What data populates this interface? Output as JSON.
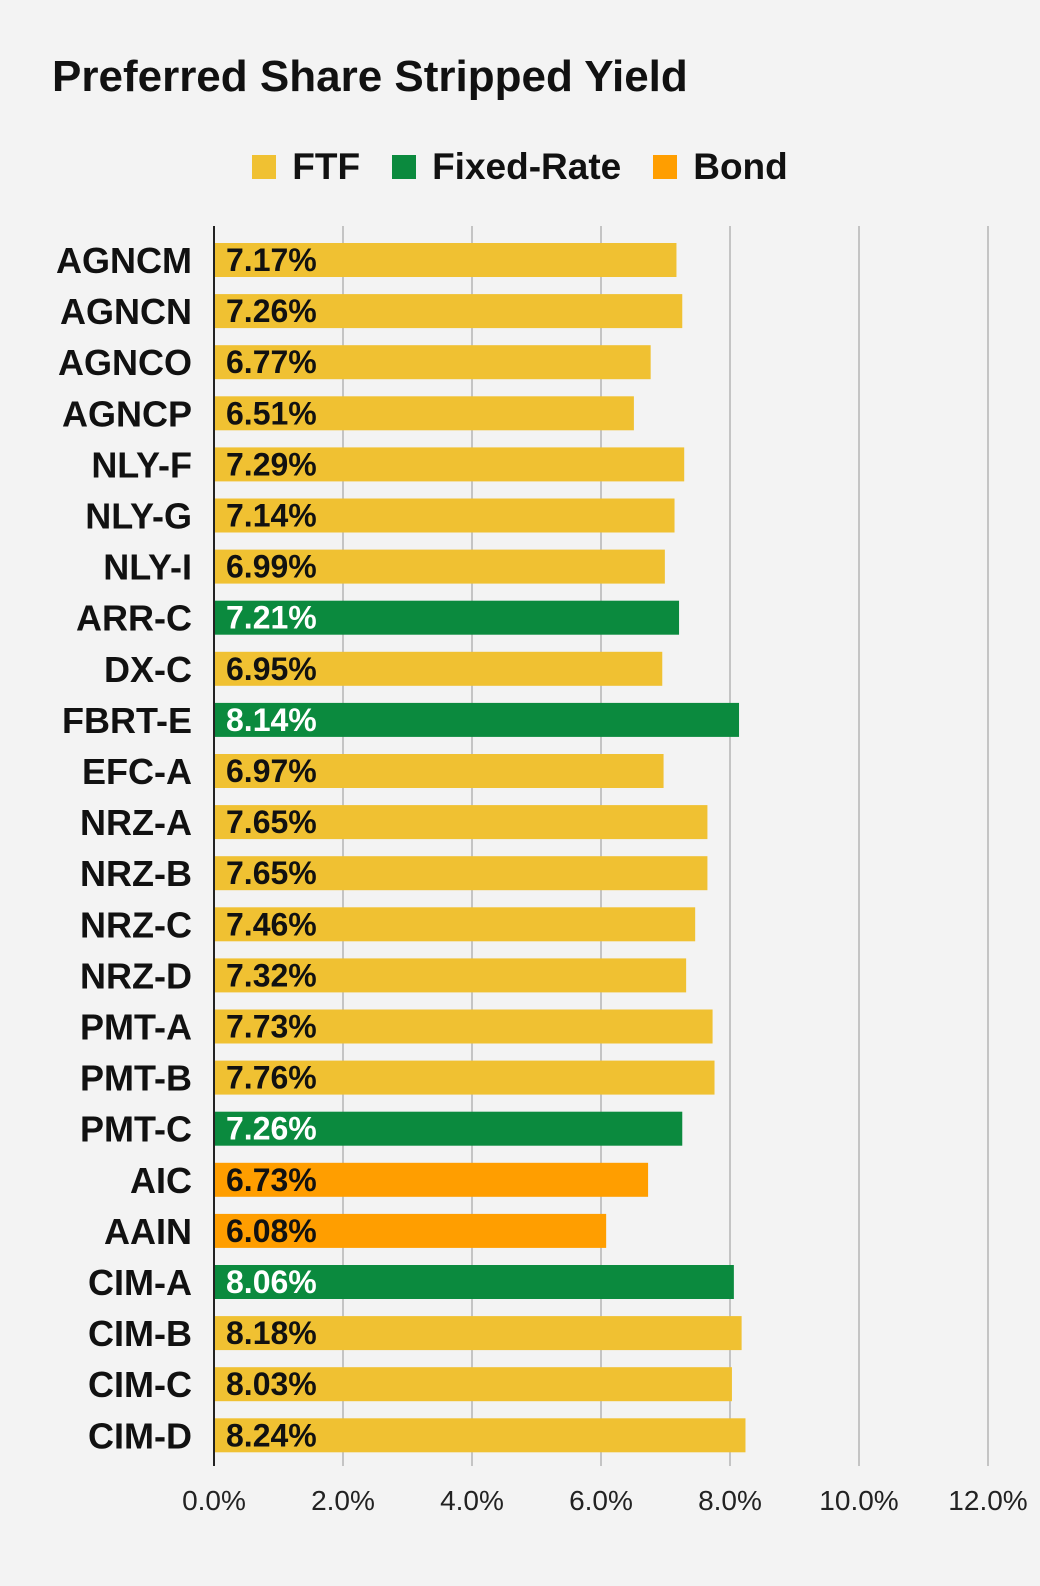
{
  "chart_data": {
    "type": "bar",
    "orientation": "horizontal",
    "title": "Preferred Share Stripped Yield",
    "legend": [
      {
        "name": "FTF",
        "color": "#f0c132"
      },
      {
        "name": "Fixed-Rate",
        "color": "#0b8a3e"
      },
      {
        "name": "Bond",
        "color": "#ff9e00"
      }
    ],
    "legend_position": "top",
    "categories": [
      "AGNCM",
      "AGNCN",
      "AGNCO",
      "AGNCP",
      "NLY-F",
      "NLY-G",
      "NLY-I",
      "ARR-C",
      "DX-C",
      "FBRT-E",
      "EFC-A",
      "NRZ-A",
      "NRZ-B",
      "NRZ-C",
      "NRZ-D",
      "PMT-A",
      "PMT-B",
      "PMT-C",
      "AIC",
      "AAIN",
      "CIM-A",
      "CIM-B",
      "CIM-C",
      "CIM-D"
    ],
    "values": [
      7.17,
      7.26,
      6.77,
      6.51,
      7.29,
      7.14,
      6.99,
      7.21,
      6.95,
      8.14,
      6.97,
      7.65,
      7.65,
      7.46,
      7.32,
      7.73,
      7.76,
      7.26,
      6.73,
      6.08,
      8.06,
      8.18,
      8.03,
      8.24
    ],
    "value_labels": [
      "7.17%",
      "7.26%",
      "6.77%",
      "6.51%",
      "7.29%",
      "7.14%",
      "6.99%",
      "7.21%",
      "6.95%",
      "8.14%",
      "6.97%",
      "7.65%",
      "7.65%",
      "7.46%",
      "7.32%",
      "7.73%",
      "7.76%",
      "7.26%",
      "6.73%",
      "6.08%",
      "8.06%",
      "8.18%",
      "8.03%",
      "8.24%"
    ],
    "series_type": [
      "FTF",
      "FTF",
      "FTF",
      "FTF",
      "FTF",
      "FTF",
      "FTF",
      "Fixed-Rate",
      "FTF",
      "Fixed-Rate",
      "FTF",
      "FTF",
      "FTF",
      "FTF",
      "FTF",
      "FTF",
      "FTF",
      "Fixed-Rate",
      "Bond",
      "Bond",
      "Fixed-Rate",
      "FTF",
      "FTF",
      "FTF"
    ],
    "xlim": [
      0,
      12
    ],
    "xticks": [
      0,
      2,
      4,
      6,
      8,
      10,
      12
    ],
    "xtick_labels": [
      "0.0%",
      "2.0%",
      "4.0%",
      "6.0%",
      "8.0%",
      "10.0%",
      "12.0%"
    ],
    "grid": true,
    "label_text_color": {
      "FTF": "#111111",
      "Fixed-Rate": "#ffffff",
      "Bond": "#111111"
    }
  }
}
